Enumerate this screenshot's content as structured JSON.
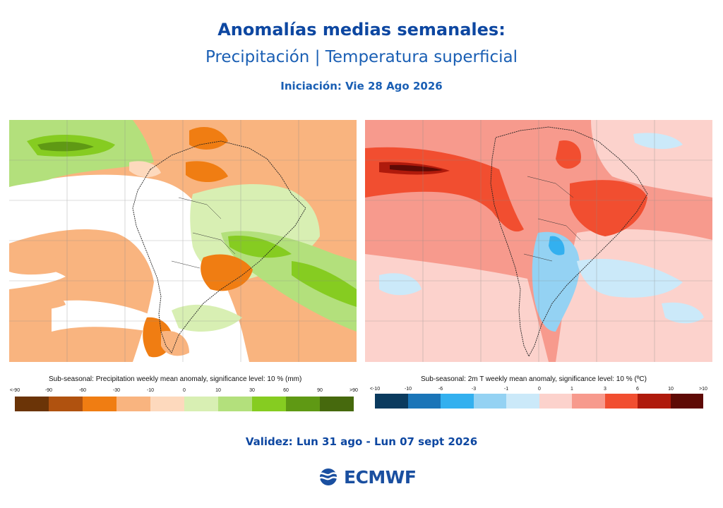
{
  "header": {
    "title": "Anomalías medias semanales:",
    "subtitle": "Precipitación | Temperatura superficial",
    "initialization": "Iniciación: Vie 28 Ago 2026"
  },
  "maps": {
    "precipitation": {
      "legend_title": "Sub-seasonal: Precipitation weekly mean anomaly, significance level: 10 % (mm)",
      "ticks": [
        "<-90",
        "-90",
        "-60",
        "-30",
        "-10",
        "0",
        "10",
        "30",
        "60",
        "90",
        ">90"
      ],
      "colors": [
        "#6b3407",
        "#b0520f",
        "#f07d12",
        "#f9b47f",
        "#fdd9bd",
        "#d8efb3",
        "#b3e07c",
        "#86cc21",
        "#5f9914",
        "#46690d"
      ]
    },
    "temperature": {
      "legend_title": "Sub-seasonal: 2m T weekly mean anomaly, significance level: 10 % (ºC)",
      "ticks": [
        "<-10",
        "-10",
        "-6",
        "-3",
        "-1",
        "0",
        "1",
        "3",
        "6",
        "10",
        ">10"
      ],
      "colors": [
        "#0a3a5e",
        "#1a75b8",
        "#33b0ef",
        "#94d2f3",
        "#cbe9f9",
        "#fcd2cc",
        "#f79a8d",
        "#f14e30",
        "#af1a0c",
        "#5e0a05"
      ]
    }
  },
  "footer": {
    "validity": "Validez: Lun 31 ago - Lun 07 sept 2026",
    "logo_text": "ECMWF"
  }
}
